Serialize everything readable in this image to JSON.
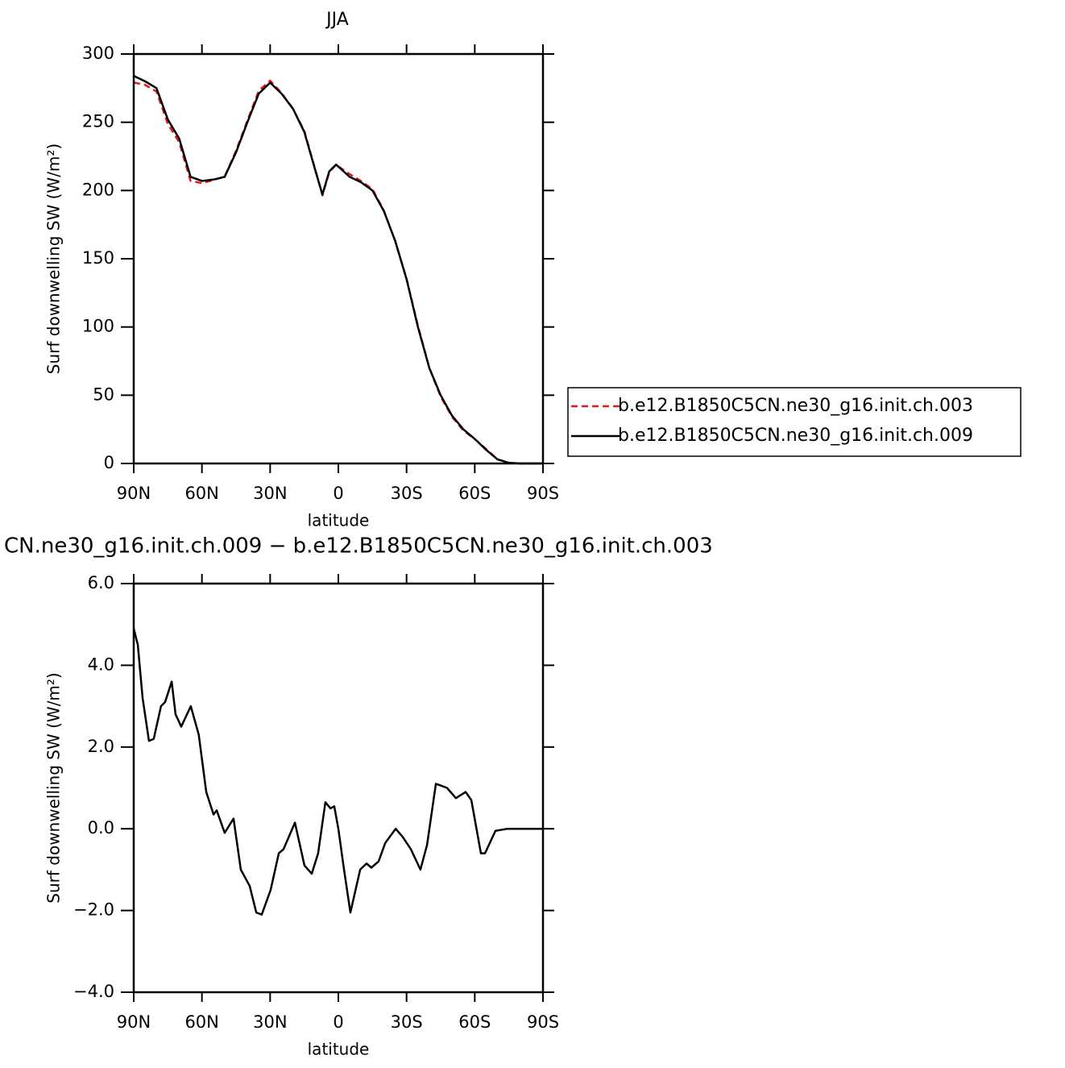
{
  "chart_data": [
    {
      "type": "line",
      "title": "JJA",
      "xlabel": "latitude",
      "ylabel": "Surf downwelling SW (W/m²)",
      "x": [
        90,
        85,
        80,
        75,
        70,
        65,
        60,
        55,
        50,
        45,
        40,
        35,
        30,
        25,
        20,
        15,
        10,
        7,
        4,
        1,
        -5,
        -10,
        -15,
        -20,
        -25,
        -30,
        -35,
        -40,
        -45,
        -50,
        -55,
        -60,
        -65,
        -70,
        -75,
        -80,
        -85,
        -90
      ],
      "series": [
        {
          "name": "b.e12.B1850C5CN.ne30_g16.init.ch.003",
          "color": "#e41a1c",
          "line_style": "dashed",
          "values": [
            279.1,
            277.4,
            272.5,
            248.8,
            235.4,
            207,
            205.4,
            207.65,
            210.1,
            229.1,
            251.3,
            273.1,
            280.5,
            271.55,
            259.9,
            243.9,
            214.3,
            196.4,
            213.5,
            218.8,
            212,
            206.95,
            200.95,
            185.4,
            163,
            135.35,
            100.9,
            70.1,
            48.95,
            34.2,
            24.15,
            17.8,
            10.6,
            3.05,
            0.5,
            0,
            0,
            0
          ]
        },
        {
          "name": "b.e12.B1850C5CN.ne30_g16.init.ch.009",
          "color": "#000000",
          "line_style": "solid",
          "values": [
            284,
            280,
            275,
            252,
            238,
            210,
            207,
            208,
            210,
            228,
            250,
            271,
            279,
            271,
            260,
            243,
            214,
            197,
            214,
            219,
            210,
            206,
            200,
            185,
            163,
            135,
            100,
            70,
            50,
            35,
            25,
            18,
            10,
            3,
            0.5,
            0,
            0,
            0
          ]
        }
      ],
      "xlim": [
        90,
        -90
      ],
      "xticks": [
        {
          "value": 90,
          "label": "90N"
        },
        {
          "value": 60,
          "label": "60N"
        },
        {
          "value": 30,
          "label": "30N"
        },
        0,
        {
          "value": -30,
          "label": "30S"
        },
        {
          "value": -60,
          "label": "60S"
        },
        {
          "value": -90,
          "label": "90S"
        }
      ],
      "ylim": [
        0,
        300
      ],
      "yticks": [
        0,
        50,
        100,
        150,
        200,
        250,
        300
      ],
      "legend": "outside-right",
      "grid": false
    },
    {
      "type": "line",
      "title": "CN.ne30_g16.init.ch.009 − b.e12.B1850C5CN.ne30_g16.init.ch.003",
      "xlabel": "latitude",
      "ylabel": "Surf downwelling SW (W/m²)",
      "x": [
        90,
        88.2,
        86.1,
        83.3,
        81.2,
        78,
        76.2,
        73.3,
        71.6,
        69.1,
        64.9,
        61.4,
        58.1,
        54.9,
        53.5,
        50,
        46.1,
        42.9,
        39,
        36.1,
        33.7,
        29.8,
        26.2,
        24.1,
        19.1,
        14.9,
        11.7,
        8.9,
        5.7,
        3.5,
        1.8,
        0,
        -2.5,
        -5.3,
        -9.6,
        -12.4,
        -14.5,
        -17.7,
        -20.6,
        -25.2,
        -28.3,
        -31.9,
        -36.1,
        -39,
        -42.9,
        -45.4,
        -47.8,
        -51.7,
        -56,
        -58.5,
        -62.7,
        -64.5,
        -69.1,
        -74.4,
        -90
      ],
      "values": [
        4.9,
        4.5,
        3.2,
        2.15,
        2.2,
        3.0,
        3.1,
        3.6,
        2.8,
        2.5,
        3.0,
        2.3,
        0.9,
        0.35,
        0.45,
        -0.1,
        0.25,
        -1.0,
        -1.4,
        -2.05,
        -2.1,
        -1.5,
        -0.6,
        -0.5,
        0.15,
        -0.9,
        -1.1,
        -0.6,
        0.65,
        0.5,
        0.55,
        0.0,
        -1.0,
        -2.05,
        -1.0,
        -0.85,
        -0.95,
        -0.8,
        -0.35,
        0.0,
        -0.2,
        -0.5,
        -1.0,
        -0.4,
        1.1,
        1.05,
        1.0,
        0.75,
        0.9,
        0.7,
        -0.6,
        -0.6,
        -0.05,
        0.0,
        0.0
      ],
      "color": "#000000",
      "xlim": [
        90,
        -90
      ],
      "xticks": [
        {
          "value": 90,
          "label": "90N"
        },
        {
          "value": 60,
          "label": "60N"
        },
        {
          "value": 30,
          "label": "30N"
        },
        0,
        {
          "value": -30,
          "label": "30S"
        },
        {
          "value": -60,
          "label": "60S"
        },
        {
          "value": -90,
          "label": "90S"
        }
      ],
      "ylim": [
        -4,
        6
      ],
      "yticks": [
        {
          "value": -4,
          "label": "−4.0"
        },
        {
          "value": -2,
          "label": "−2.0"
        },
        {
          "value": 0,
          "label": "0.0"
        },
        {
          "value": 2,
          "label": "2.0"
        },
        {
          "value": 4,
          "label": "4.0"
        },
        {
          "value": 6,
          "label": "6.0"
        }
      ],
      "grid": false
    }
  ]
}
